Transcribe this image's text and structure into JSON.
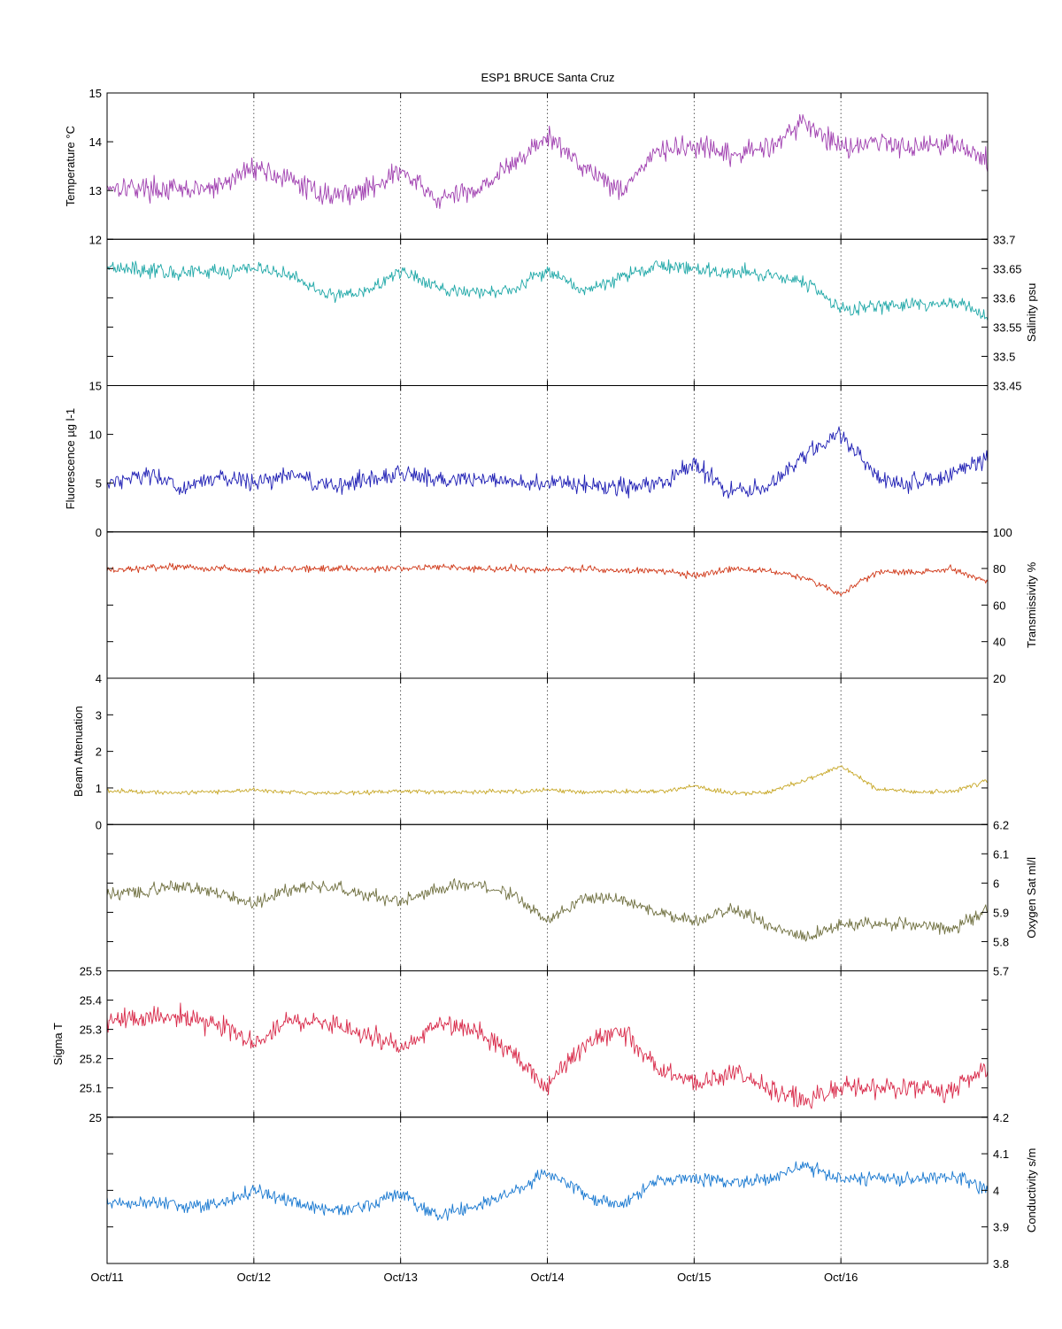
{
  "figure": {
    "title": "ESP1 BRUCE Santa Cruz"
  },
  "chart_data": {
    "type": "line",
    "title": "ESP1 BRUCE Santa Cruz",
    "x_axis": {
      "label": "",
      "range_days": [
        11,
        17
      ],
      "ticks": [
        11,
        12,
        13,
        14,
        15,
        16
      ],
      "tick_labels": [
        "Oct/11",
        "Oct/12",
        "Oct/13",
        "Oct/14",
        "Oct/15",
        "Oct/16"
      ],
      "grid": "dotted vertical"
    },
    "panels": [
      {
        "id": "temperature",
        "ylabel": "Temperature °C",
        "axis_side": "left",
        "ylim": [
          12,
          15
        ],
        "yticks": [
          12,
          13,
          14,
          15
        ],
        "ytick_labels": [
          "12",
          "13",
          "14",
          "15"
        ],
        "color": "#a040b0",
        "x": [
          11.0,
          11.25,
          11.5,
          11.75,
          12.0,
          12.25,
          12.5,
          12.75,
          13.0,
          13.25,
          13.5,
          13.75,
          14.0,
          14.25,
          14.5,
          14.75,
          15.0,
          15.25,
          15.5,
          15.75,
          16.0,
          16.25,
          16.5,
          16.75,
          17.0
        ],
        "y": [
          13.1,
          13.05,
          13.0,
          13.05,
          13.5,
          13.2,
          12.9,
          13.0,
          13.4,
          12.8,
          13.0,
          13.5,
          14.1,
          13.5,
          13.0,
          13.8,
          13.9,
          13.7,
          13.9,
          14.4,
          13.9,
          14.0,
          13.9,
          14.0,
          13.6
        ],
        "noise": 0.22
      },
      {
        "id": "salinity",
        "ylabel": "Salinity psu",
        "axis_side": "right",
        "ylim": [
          33.45,
          33.7
        ],
        "yticks": [
          33.45,
          33.5,
          33.55,
          33.6,
          33.65,
          33.7
        ],
        "ytick_labels": [
          "33.45",
          "33.5",
          "33.55",
          "33.6",
          "33.65",
          "33.7"
        ],
        "color": "#20a8a8",
        "x": [
          11.0,
          11.25,
          11.5,
          11.75,
          12.0,
          12.25,
          12.5,
          12.75,
          13.0,
          13.25,
          13.5,
          13.75,
          14.0,
          14.25,
          14.5,
          14.75,
          15.0,
          15.25,
          15.5,
          15.75,
          16.0,
          16.25,
          16.5,
          16.75,
          17.0
        ],
        "y": [
          33.655,
          33.648,
          33.642,
          33.645,
          33.652,
          33.638,
          33.605,
          33.61,
          33.645,
          33.618,
          33.608,
          33.612,
          33.65,
          33.61,
          33.635,
          33.655,
          33.648,
          33.645,
          33.64,
          33.63,
          33.58,
          33.585,
          33.588,
          33.592,
          33.57
        ],
        "noise": 0.012
      },
      {
        "id": "fluorescence",
        "ylabel": "Fluorescence µg l-1",
        "axis_side": "left",
        "ylim": [
          0,
          15
        ],
        "yticks": [
          0,
          5,
          10,
          15
        ],
        "ytick_labels": [
          "0",
          "5",
          "10",
          "15"
        ],
        "color": "#1e1eb4",
        "x": [
          11.0,
          11.25,
          11.5,
          11.75,
          12.0,
          12.25,
          12.5,
          12.75,
          13.0,
          13.25,
          13.5,
          13.75,
          14.0,
          14.25,
          14.5,
          14.75,
          15.0,
          15.25,
          15.5,
          15.75,
          16.0,
          16.25,
          16.5,
          16.75,
          17.0
        ],
        "y": [
          5.0,
          6.0,
          4.5,
          5.5,
          5.0,
          6.0,
          4.5,
          5.5,
          6.0,
          5.5,
          5.5,
          5.0,
          5.0,
          4.8,
          4.5,
          5.0,
          7.0,
          4.0,
          4.5,
          8.0,
          10.0,
          5.5,
          5.0,
          6.0,
          7.5
        ],
        "noise": 0.9
      },
      {
        "id": "transmissivity",
        "ylabel": "Transmissivity %",
        "axis_side": "right",
        "ylim": [
          20,
          100
        ],
        "yticks": [
          20,
          40,
          60,
          80,
          100
        ],
        "ytick_labels": [
          "20",
          "40",
          "60",
          "80",
          "100"
        ],
        "color": "#d03818",
        "x": [
          11.0,
          11.25,
          11.5,
          11.75,
          12.0,
          12.25,
          12.5,
          12.75,
          13.0,
          13.25,
          13.5,
          13.75,
          14.0,
          14.25,
          14.5,
          14.75,
          15.0,
          15.25,
          15.5,
          15.75,
          16.0,
          16.25,
          16.5,
          16.75,
          17.0
        ],
        "y": [
          79,
          80,
          81,
          80,
          79,
          80,
          80,
          80,
          80,
          81,
          80,
          80,
          79,
          80,
          79,
          79,
          76,
          80,
          79,
          75,
          66,
          78,
          78,
          80,
          73
        ],
        "noise": 1.8
      },
      {
        "id": "beam_attenuation",
        "ylabel": "Beam Attenuation",
        "axis_side": "left",
        "ylim": [
          0,
          4
        ],
        "yticks": [
          0,
          1,
          2,
          3,
          4
        ],
        "ytick_labels": [
          "0",
          "1",
          "2",
          "3",
          "4"
        ],
        "color": "#c8a828",
        "x": [
          11.0,
          11.25,
          11.5,
          11.75,
          12.0,
          12.25,
          12.5,
          12.75,
          13.0,
          13.25,
          13.5,
          13.75,
          14.0,
          14.25,
          14.5,
          14.75,
          15.0,
          15.25,
          15.5,
          15.75,
          16.0,
          16.25,
          16.5,
          16.75,
          17.0
        ],
        "y": [
          0.92,
          0.9,
          0.88,
          0.9,
          0.95,
          0.88,
          0.85,
          0.88,
          0.92,
          0.88,
          0.9,
          0.9,
          0.95,
          0.88,
          0.9,
          0.9,
          1.05,
          0.85,
          0.88,
          1.2,
          1.6,
          0.95,
          0.9,
          0.9,
          1.2
        ],
        "noise": 0.06
      },
      {
        "id": "oxygen_sat",
        "ylabel": "Oxygen Sat ml/l",
        "axis_side": "right",
        "ylim": [
          5.7,
          6.2
        ],
        "yticks": [
          5.7,
          5.8,
          5.9,
          6.0,
          6.1,
          6.2
        ],
        "ytick_labels": [
          "5.7",
          "5.8",
          "5.9",
          "6",
          "6.1",
          "6.2"
        ],
        "color": "#707040",
        "x": [
          11.0,
          11.25,
          11.5,
          11.75,
          12.0,
          12.25,
          12.5,
          12.75,
          13.0,
          13.25,
          13.5,
          13.75,
          14.0,
          14.25,
          14.5,
          14.75,
          15.0,
          15.25,
          15.5,
          15.75,
          16.0,
          16.25,
          16.5,
          16.75,
          17.0
        ],
        "y": [
          5.96,
          5.97,
          5.99,
          5.97,
          5.93,
          5.98,
          5.99,
          5.96,
          5.94,
          5.98,
          6.0,
          5.96,
          5.87,
          5.95,
          5.94,
          5.9,
          5.87,
          5.91,
          5.86,
          5.81,
          5.86,
          5.86,
          5.86,
          5.84,
          5.91
        ],
        "noise": 0.022
      },
      {
        "id": "sigma_t",
        "ylabel": "Sigma T",
        "axis_side": "left",
        "ylim": [
          25,
          25.5
        ],
        "yticks": [
          25.0,
          25.1,
          25.2,
          25.3,
          25.4,
          25.5
        ],
        "ytick_labels": [
          "25",
          "25.1",
          "25.2",
          "25.3",
          "25.4",
          "25.5"
        ],
        "color": "#d82848",
        "x": [
          11.0,
          11.25,
          11.5,
          11.75,
          12.0,
          12.25,
          12.5,
          12.75,
          13.0,
          13.25,
          13.5,
          13.75,
          14.0,
          14.25,
          14.5,
          14.75,
          15.0,
          15.25,
          15.5,
          15.75,
          16.0,
          16.25,
          16.5,
          16.75,
          17.0
        ],
        "y": [
          25.33,
          25.34,
          25.34,
          25.32,
          25.25,
          25.33,
          25.32,
          25.28,
          25.24,
          25.32,
          25.3,
          25.22,
          25.1,
          25.25,
          25.3,
          25.17,
          25.12,
          25.15,
          25.1,
          25.05,
          25.1,
          25.1,
          25.1,
          25.09,
          25.17
        ],
        "noise": 0.035
      },
      {
        "id": "conductivity",
        "ylabel": "Conductivity s/m",
        "axis_side": "right",
        "ylim": [
          3.8,
          4.2
        ],
        "yticks": [
          3.8,
          3.9,
          4.0,
          4.1,
          4.2
        ],
        "ytick_labels": [
          "3.8",
          "3.9",
          "4",
          "4.1",
          "4.2"
        ],
        "color": "#1878d0",
        "x": [
          11.0,
          11.25,
          11.5,
          11.75,
          12.0,
          12.25,
          12.5,
          12.75,
          13.0,
          13.25,
          13.5,
          13.75,
          14.0,
          14.25,
          14.5,
          14.75,
          15.0,
          15.25,
          15.5,
          15.75,
          16.0,
          16.25,
          16.5,
          16.75,
          17.0
        ],
        "y": [
          3.965,
          3.962,
          3.96,
          3.962,
          4.0,
          3.97,
          3.945,
          3.955,
          3.99,
          3.93,
          3.955,
          3.99,
          4.05,
          3.99,
          3.955,
          4.03,
          4.035,
          4.02,
          4.03,
          4.07,
          4.03,
          4.035,
          4.03,
          4.04,
          4.0
        ],
        "noise": 0.018
      }
    ]
  }
}
